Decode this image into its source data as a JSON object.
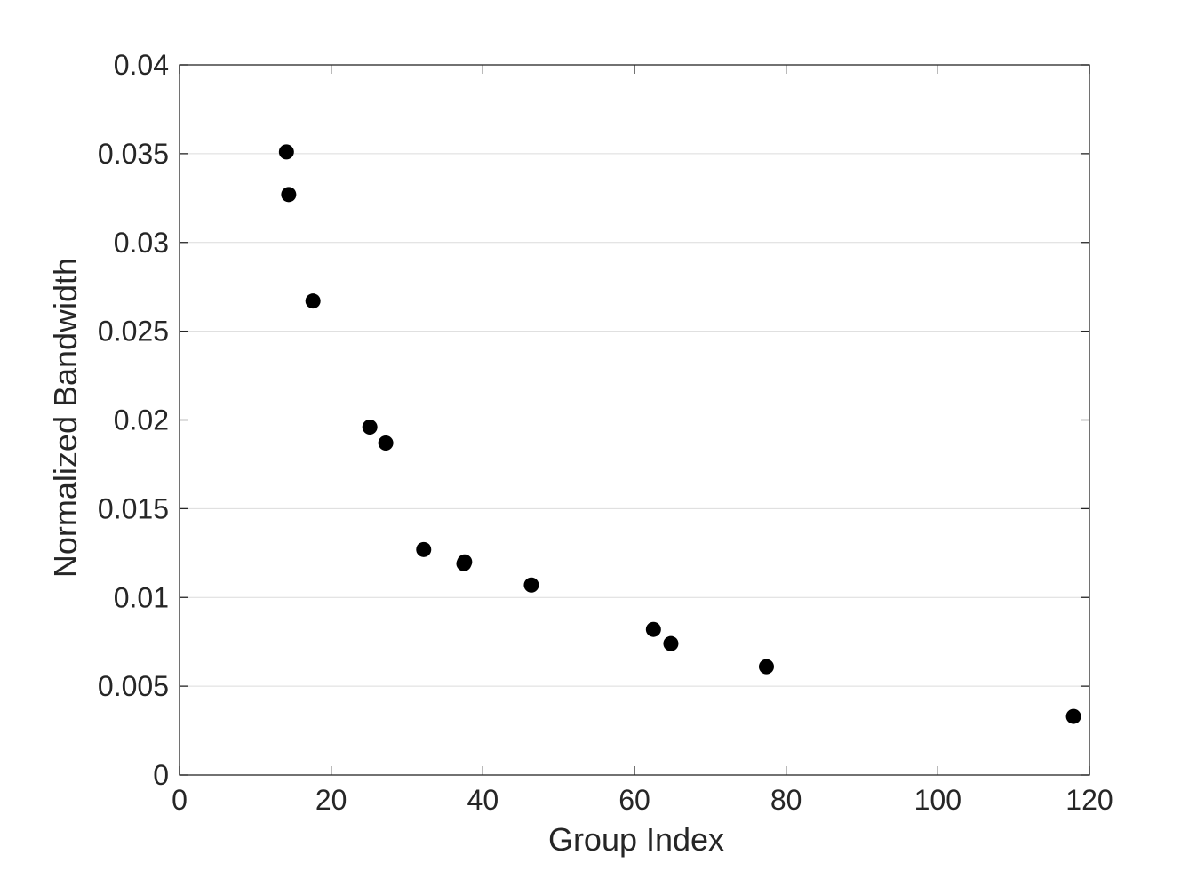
{
  "chart_data": {
    "type": "scatter",
    "title": "",
    "xlabel": "Group Index",
    "ylabel": "Normalized Bandwidth",
    "xlim": [
      0,
      120
    ],
    "ylim": [
      0,
      0.04
    ],
    "x_ticks": [
      {
        "value": 0,
        "label": "0"
      },
      {
        "value": 20,
        "label": "20"
      },
      {
        "value": 40,
        "label": "40"
      },
      {
        "value": 60,
        "label": "60"
      },
      {
        "value": 80,
        "label": "80"
      },
      {
        "value": 100,
        "label": "100"
      },
      {
        "value": 120,
        "label": "120"
      }
    ],
    "y_ticks": [
      {
        "value": 0,
        "label": "0"
      },
      {
        "value": 0.005,
        "label": "0.005"
      },
      {
        "value": 0.01,
        "label": "0.01"
      },
      {
        "value": 0.015,
        "label": "0.015"
      },
      {
        "value": 0.02,
        "label": "0.02"
      },
      {
        "value": 0.025,
        "label": "0.025"
      },
      {
        "value": 0.03,
        "label": "0.03"
      },
      {
        "value": 0.035,
        "label": "0.035"
      },
      {
        "value": 0.04,
        "label": "0.04"
      }
    ],
    "grid": "y-major",
    "marker_color": "#000000",
    "points": [
      {
        "x": 14.1,
        "y": 0.0351
      },
      {
        "x": 14.4,
        "y": 0.0327
      },
      {
        "x": 17.6,
        "y": 0.0267
      },
      {
        "x": 25.1,
        "y": 0.0196
      },
      {
        "x": 27.2,
        "y": 0.0187
      },
      {
        "x": 32.2,
        "y": 0.0127
      },
      {
        "x": 37.5,
        "y": 0.0119
      },
      {
        "x": 37.6,
        "y": 0.012
      },
      {
        "x": 46.4,
        "y": 0.0107
      },
      {
        "x": 62.5,
        "y": 0.0082
      },
      {
        "x": 64.8,
        "y": 0.0074
      },
      {
        "x": 77.4,
        "y": 0.0061
      },
      {
        "x": 117.9,
        "y": 0.0033
      }
    ]
  }
}
